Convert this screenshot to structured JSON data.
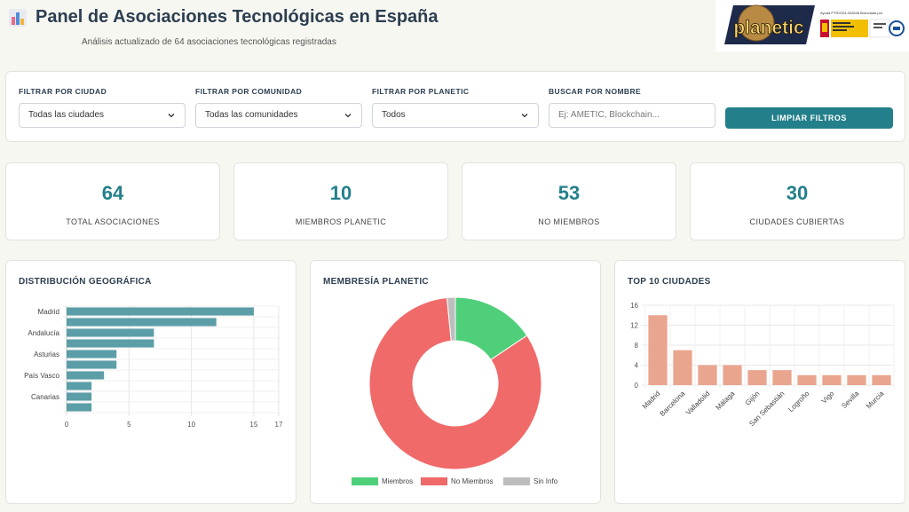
{
  "header": {
    "title": "Panel de Asociaciones Tecnológicas en España",
    "subtitle": "Análisis actualizado de 64 asociaciones tecnológicas registradas",
    "logo_text": "planetic",
    "gov_caption": "Ayuda PTR2024-002848 financiada por"
  },
  "filters": {
    "city": {
      "label": "Filtrar por ciudad",
      "value": "Todas las ciudades"
    },
    "community": {
      "label": "Filtrar por comunidad",
      "value": "Todas las comunidades"
    },
    "planetic": {
      "label": "Filtrar por Planetic",
      "value": "Todos"
    },
    "search": {
      "label": "Buscar por nombre",
      "placeholder": "Ej: AMETIC, Blockchain..."
    },
    "clear_label": "Limpiar filtros"
  },
  "stats": [
    {
      "value": "64",
      "label": "Total asociaciones"
    },
    {
      "value": "10",
      "label": "Miembros Planetic"
    },
    {
      "value": "53",
      "label": "No miembros"
    },
    {
      "value": "30",
      "label": "Ciudades cubiertas"
    }
  ],
  "colors": {
    "accent": "#23808a",
    "bar_geo": "#5b9ea7",
    "members": "#4fcf79",
    "non_members": "#f06a6a",
    "no_info": "#bdbdbd",
    "bar_cities": "#eaa58f"
  },
  "chart_data": [
    {
      "type": "bar",
      "orientation": "horizontal",
      "title": "Distribución geográfica",
      "tick_labels_y": [
        "Madrid",
        "Andalucía",
        "Asturias",
        "País Vasco",
        "Canarias"
      ],
      "values": [
        15,
        12,
        7,
        7,
        4,
        4,
        3,
        2,
        2,
        2
      ],
      "xticks": [
        0,
        5,
        10,
        15,
        17
      ],
      "xlim": [
        0,
        17
      ],
      "grid": true
    },
    {
      "type": "pie",
      "variant": "doughnut",
      "title": "Membresía Planetic",
      "labels": [
        "Miembros",
        "No Miembros",
        "Sin Info"
      ],
      "values": [
        10,
        53,
        1
      ],
      "legend": "bottom"
    },
    {
      "type": "bar",
      "title": "Top 10 ciudades",
      "categories": [
        "Madrid",
        "Barcelona",
        "Valladolid",
        "Málaga",
        "Gijón",
        "San Sebastián",
        "Logroño",
        "Vigo",
        "Sevilla",
        "Murcia"
      ],
      "values": [
        14,
        7,
        4,
        4,
        3,
        3,
        2,
        2,
        2,
        2
      ],
      "yticks": [
        0,
        4,
        8,
        12,
        16
      ],
      "ylim": [
        0,
        16
      ],
      "grid": true
    }
  ]
}
